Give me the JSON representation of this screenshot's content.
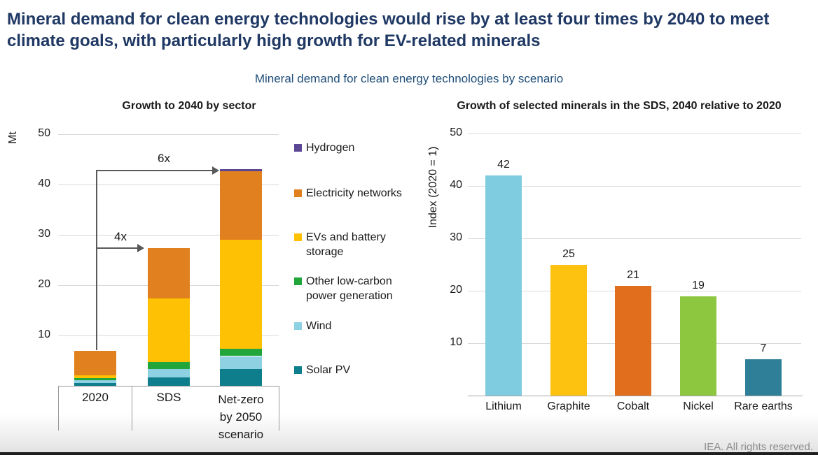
{
  "page": {
    "title_lines": [
      "Mineral demand for clean energy technologies would rise by at least four times by 2040 to meet",
      "climate goals, with particularly high growth for EV-related minerals"
    ],
    "subtitle": "Mineral demand for clean energy technologies by scenario",
    "footer": "IEA. All rights reserved.",
    "colors": {
      "title": "#1F3864",
      "subtitle": "#1F4E79",
      "gridline": "#D9D9D9",
      "axis": "#999999",
      "baseline": "#A6A6A6",
      "arrow": "#595959",
      "footer_text": "#8C8C8C",
      "bottom_bar": "#1E1E1E"
    }
  },
  "chart_data": [
    {
      "type": "bar",
      "subtype": "stacked",
      "title": "Growth to 2040 by sector",
      "ylabel": "Mt",
      "ylim": [
        0,
        50
      ],
      "yticks": [
        10,
        20,
        30,
        40,
        50
      ],
      "grid": true,
      "categories": [
        "2020",
        "SDS",
        "Net-zero by 2050 scenario"
      ],
      "series": [
        {
          "name": "Solar PV",
          "color": "#0E7E8C",
          "values": [
            0.6,
            1.7,
            3.3
          ]
        },
        {
          "name": "Wind",
          "color": "#8DD1E2",
          "values": [
            0.5,
            1.6,
            2.6
          ]
        },
        {
          "name": "Other low-carbon power generation",
          "color": "#22A63B",
          "values": [
            0.4,
            1.4,
            1.5
          ]
        },
        {
          "name": "EVs and battery storage",
          "color": "#FFC103",
          "values": [
            0.6,
            12.6,
            21.6
          ]
        },
        {
          "name": "Electricity networks",
          "color": "#E0801E",
          "values": [
            4.9,
            10.1,
            13.7
          ]
        },
        {
          "name": "Hydrogen",
          "color": "#5C4794",
          "values": [
            0,
            0,
            0.3
          ]
        }
      ],
      "totals": [
        7.0,
        27.4,
        43.0
      ],
      "annotations": [
        {
          "label": "4x",
          "target": "SDS"
        },
        {
          "label": "6x",
          "target": "Net-zero by 2050 scenario"
        }
      ],
      "legend_position": "right",
      "legend_order": [
        "Hydrogen",
        "Electricity networks",
        "EVs and battery storage",
        "Other low-carbon power generation",
        "Wind",
        "Solar PV"
      ]
    },
    {
      "type": "bar",
      "title": "Growth of selected minerals in the SDS, 2040 relative to 2020",
      "ylabel": "Index (2020 = 1)",
      "ylim": [
        0,
        50
      ],
      "yticks": [
        10,
        20,
        30,
        40,
        50
      ],
      "grid": true,
      "categories": [
        "Lithium",
        "Graphite",
        "Cobalt",
        "Nickel",
        "Rare earths"
      ],
      "values": [
        42,
        25,
        21,
        19,
        7
      ],
      "data_labels": [
        "42",
        "25",
        "21",
        "19",
        "7"
      ],
      "bar_colors": [
        "#7FCBE0",
        "#FDC20F",
        "#E06E1C",
        "#8DC63F",
        "#2F7F98"
      ]
    }
  ]
}
